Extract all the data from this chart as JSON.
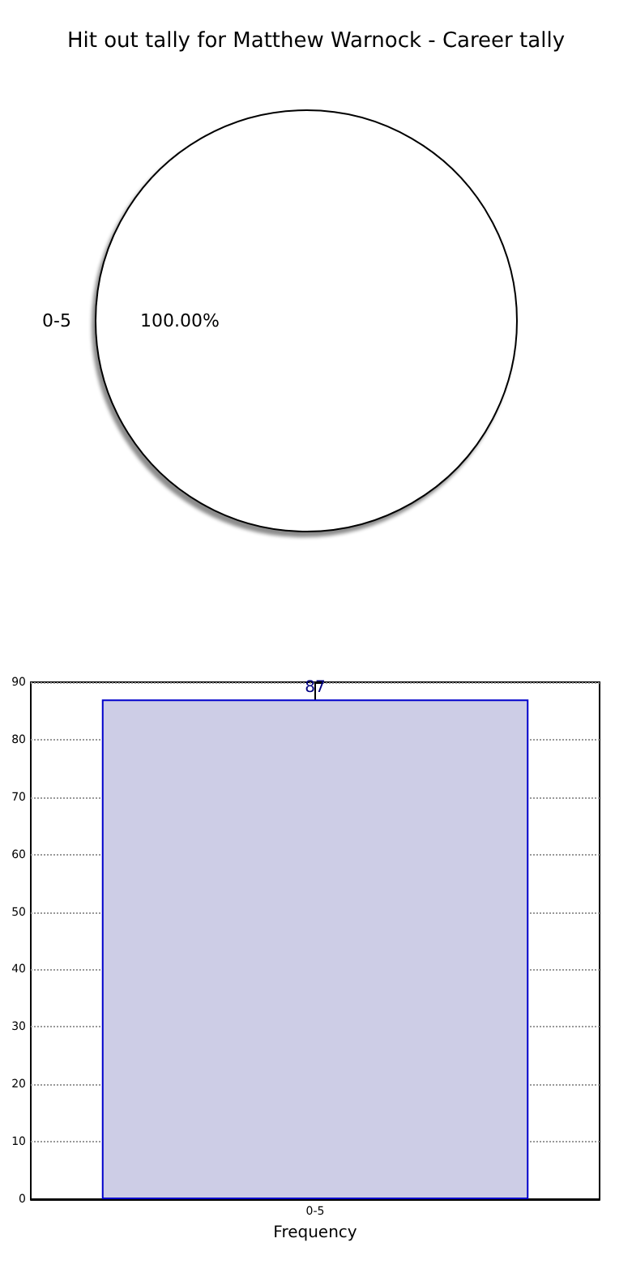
{
  "chart_data": [
    {
      "type": "pie",
      "title": "Hit out tally for Matthew Warnock - Career tally",
      "categories": [
        "0-5"
      ],
      "values": [
        100
      ],
      "colors": [
        "#ffffff"
      ],
      "value_labels": [
        "100.00%"
      ]
    },
    {
      "type": "bar",
      "categories": [
        "0-5"
      ],
      "values": [
        87
      ],
      "color": "#cdcde6",
      "ylim": [
        0,
        90
      ],
      "yticks": [
        0,
        10,
        20,
        30,
        40,
        50,
        60,
        70,
        80,
        90
      ],
      "grid": true,
      "xlabel": "Frequency",
      "data_labels": true
    }
  ]
}
